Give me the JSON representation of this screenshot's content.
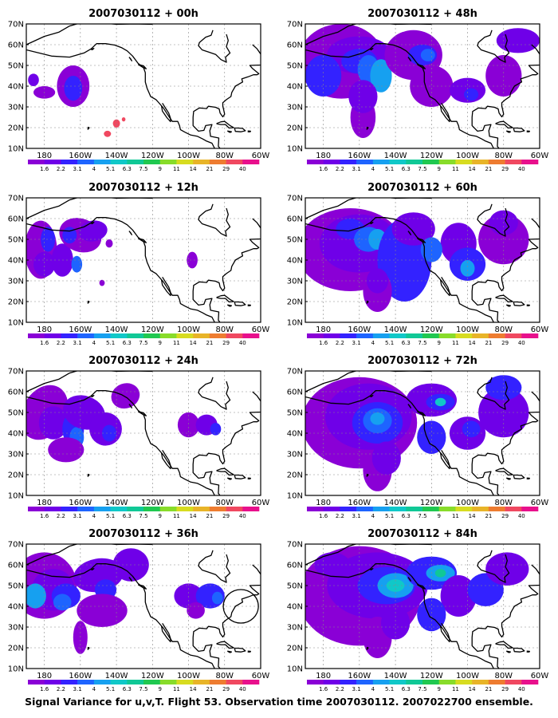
{
  "caption": "Signal Variance for u,v,T. Flight 53. Observation time 2007030112. 2007022700 ensemble.",
  "lat_ticks": [
    "10N",
    "20N",
    "30N",
    "40N",
    "50N",
    "60N",
    "70N"
  ],
  "lon_ticks": [
    "180",
    "160W",
    "140W",
    "120W",
    "100W",
    "80W",
    "60W"
  ],
  "colorbar": {
    "labels": [
      "1.6",
      "2.2",
      "3.1",
      "4",
      "5.1",
      "6.3",
      "7.5",
      "9",
      "11",
      "14",
      "21",
      "29",
      "40"
    ],
    "colors": [
      "#8a00d6",
      "#6f00e8",
      "#3322ff",
      "#1e64ff",
      "#16a0f0",
      "#10c8c8",
      "#10c896",
      "#20c850",
      "#88dc2a",
      "#d7dc20",
      "#e8b428",
      "#ee7c30",
      "#f04860",
      "#e8108c"
    ]
  },
  "panels": [
    {
      "title": "2007030112 + 00h"
    },
    {
      "title": "2007030112 + 48h"
    },
    {
      "title": "2007030112 + 12h"
    },
    {
      "title": "2007030112 + 60h"
    },
    {
      "title": "2007030112 + 24h"
    },
    {
      "title": "2007030112 + 72h"
    },
    {
      "title": "2007030112 + 36h"
    },
    {
      "title": "2007030112 + 84h"
    }
  ]
}
